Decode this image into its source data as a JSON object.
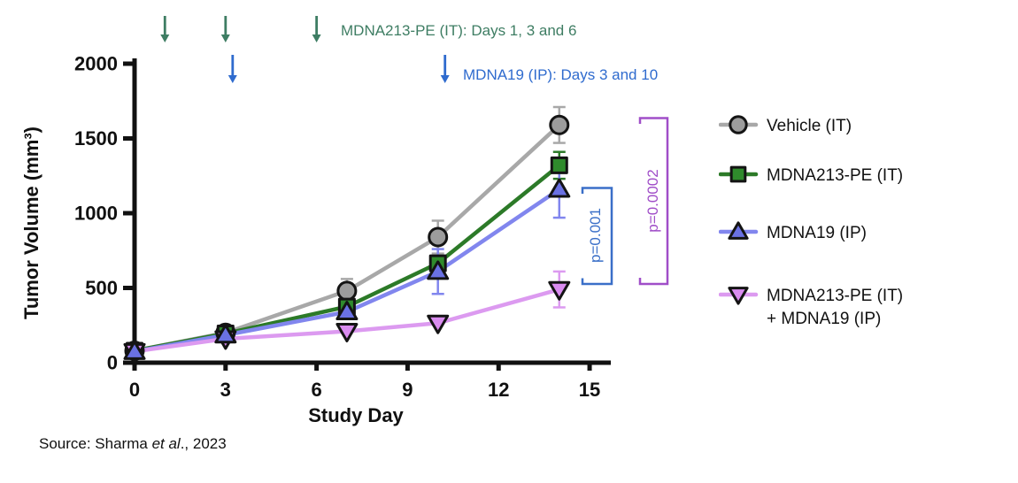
{
  "chart_data": {
    "type": "line",
    "title": "",
    "xlabel": "Study Day",
    "ylabel": "Tumor Volume (mm³)",
    "xlim": [
      0,
      15
    ],
    "ylim": [
      0,
      2000
    ],
    "xticks": [
      0,
      3,
      6,
      9,
      12,
      15
    ],
    "yticks": [
      0,
      500,
      1000,
      1500,
      2000
    ],
    "grid": false,
    "legend_position": "right",
    "x": [
      0,
      3,
      7,
      10,
      14
    ],
    "series": [
      {
        "name": "Vehicle (IT)",
        "marker": "circle",
        "line_color": "#A8A8A8",
        "fill": "#9C9C9C",
        "values": [
          80,
          200,
          480,
          840,
          1590
        ],
        "errors": [
          null,
          null,
          80,
          110,
          120
        ]
      },
      {
        "name": "MDNA213-PE (IT)",
        "marker": "square",
        "line_color": "#2C7A28",
        "fill": "#2F8B2C",
        "values": [
          80,
          195,
          375,
          665,
          1320
        ],
        "errors": [
          null,
          null,
          null,
          null,
          90
        ]
      },
      {
        "name": "MDNA19 (IP)",
        "marker": "triangle-up",
        "line_color": "#8186EE",
        "fill": "#6A71E3",
        "values": [
          75,
          185,
          340,
          610,
          1160
        ],
        "errors": [
          null,
          null,
          null,
          150,
          190
        ]
      },
      {
        "name": "MDNA213-PE (IT) + MDNA19 (IP)",
        "marker": "triangle-down",
        "line_color": "#DC9AF0",
        "fill": "#DA8CF0",
        "values": [
          75,
          160,
          210,
          265,
          490
        ],
        "errors": [
          null,
          null,
          null,
          null,
          120
        ]
      }
    ]
  },
  "annotations": {
    "green": {
      "label": "MDNA213-PE (IT): Days 1, 3 and 6",
      "color": "#3E7D63",
      "arrow_days": [
        1,
        3,
        6
      ]
    },
    "blue": {
      "label": "MDNA19 (IP): Days 3 and 10",
      "color": "#2F6BCE",
      "arrow_days": [
        3,
        10
      ]
    }
  },
  "pvalues": [
    {
      "label": "p=0.001",
      "color": "#3A6FC8",
      "compares": "MDNA19 (IP) vs combination"
    },
    {
      "label": "p=0.0002",
      "color": "#A04EC8",
      "compares": "Vehicle (IT) vs combination"
    }
  ],
  "legend": {
    "items": [
      {
        "label": "Vehicle (IT)"
      },
      {
        "label": "MDNA213-PE (IT)"
      },
      {
        "label": "MDNA19 (IP)"
      },
      {
        "label": "MDNA213-PE (IT)",
        "label2": "+ MDNA19 (IP)"
      }
    ]
  },
  "source": {
    "prefix": "Source: Sharma ",
    "italic": "et al",
    "suffix": "., 2023"
  }
}
